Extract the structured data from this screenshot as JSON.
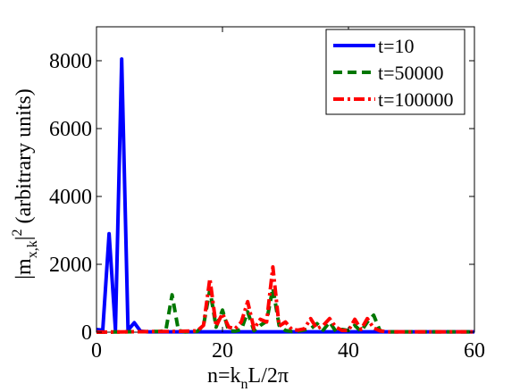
{
  "chart_data": {
    "type": "line",
    "xlabel": "n=k_n L/2π",
    "ylabel": "|m_x,k|^2 (arbitrary units)",
    "xlim": [
      0,
      60
    ],
    "ylim": [
      0,
      9000
    ],
    "x_ticks": [
      "0",
      "20",
      "40",
      "60"
    ],
    "y_ticks": [
      "0",
      "2000",
      "4000",
      "6000",
      "8000"
    ],
    "grid": false,
    "legend_position": "top-right",
    "series": [
      {
        "name": "t=10",
        "color": "#0000ff",
        "style": "solid",
        "x": [
          0,
          1,
          2,
          3,
          4,
          5,
          6,
          7,
          8,
          10,
          20,
          30,
          40,
          50,
          60
        ],
        "y": [
          80,
          60,
          2900,
          80,
          8050,
          60,
          280,
          30,
          10,
          10,
          10,
          10,
          10,
          10,
          10
        ]
      },
      {
        "name": "t=50000",
        "color": "#007700",
        "style": "dashed",
        "x": [
          0,
          10,
          11,
          12,
          13,
          14,
          16,
          17,
          18,
          19,
          20,
          21,
          22,
          23,
          24,
          25,
          26,
          27,
          28,
          29,
          30,
          31,
          32,
          34,
          35,
          36,
          37,
          38,
          39,
          40,
          41,
          42,
          43,
          44,
          45,
          46,
          50,
          60
        ],
        "y": [
          0,
          20,
          50,
          1100,
          50,
          10,
          20,
          200,
          1250,
          150,
          650,
          40,
          30,
          80,
          600,
          40,
          200,
          320,
          1300,
          200,
          50,
          20,
          30,
          100,
          250,
          60,
          300,
          20,
          80,
          50,
          200,
          20,
          300,
          500,
          40,
          10,
          10,
          10
        ]
      },
      {
        "name": "t=100000",
        "color": "#ff0000",
        "style": "dashdot",
        "x": [
          0,
          10,
          12,
          14,
          16,
          17,
          18,
          19,
          20,
          21,
          22,
          23,
          24,
          25,
          26,
          27,
          28,
          29,
          30,
          31,
          32,
          33,
          34,
          35,
          36,
          37,
          38,
          39,
          40,
          41,
          42,
          43,
          44,
          45,
          46,
          50,
          60
        ],
        "y": [
          0,
          20,
          20,
          30,
          40,
          200,
          1580,
          180,
          550,
          150,
          100,
          300,
          900,
          100,
          380,
          300,
          1920,
          180,
          300,
          80,
          60,
          100,
          400,
          100,
          200,
          400,
          150,
          50,
          50,
          380,
          80,
          400,
          120,
          40,
          10,
          10,
          10
        ]
      }
    ]
  }
}
